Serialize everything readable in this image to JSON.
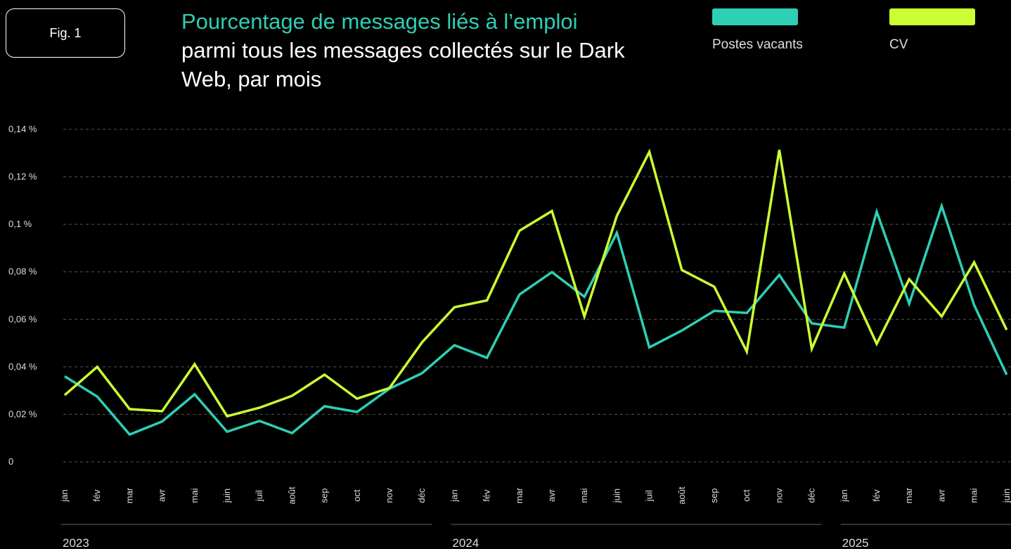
{
  "chart_data": {
    "type": "line",
    "figure_label": "Fig. 1",
    "title": "Pourcentage de messages liés à l’emploi",
    "subtitle": "parmi tous les messages collectés sur le Dark Web, par mois",
    "categories": [
      "jan",
      "fév",
      "mar",
      "avr",
      "mai",
      "juin",
      "juil",
      "août",
      "sep",
      "oct",
      "nov",
      "déc",
      "jan",
      "fév",
      "mar",
      "avr",
      "mai",
      "juin",
      "juil",
      "août",
      "sep",
      "oct",
      "nov",
      "déc",
      "jan",
      "fév",
      "mar",
      "avr",
      "mai",
      "juin"
    ],
    "years": [
      "2023",
      "2024",
      "2025"
    ],
    "series": [
      {
        "name": "Postes vacants",
        "color": "#2dcfb5",
        "values": [
          0.036,
          0.0275,
          0.0115,
          0.017,
          0.0284,
          0.0127,
          0.0172,
          0.0121,
          0.0234,
          0.021,
          0.0308,
          0.0373,
          0.0491,
          0.0438,
          0.0704,
          0.0799,
          0.0695,
          0.0964,
          0.0482,
          0.0553,
          0.0636,
          0.0627,
          0.0787,
          0.0583,
          0.0565,
          0.1053,
          0.0666,
          0.1077,
          0.066,
          0.0367
        ]
      },
      {
        "name": "CV",
        "color": "#ccff33",
        "values": [
          0.0281,
          0.04,
          0.0222,
          0.0213,
          0.0411,
          0.0192,
          0.0228,
          0.0278,
          0.0367,
          0.0266,
          0.0311,
          0.0503,
          0.0651,
          0.068,
          0.0973,
          0.1056,
          0.0612,
          0.1036,
          0.1305,
          0.0808,
          0.0737,
          0.0464,
          0.1314,
          0.0476,
          0.0793,
          0.0497,
          0.0769,
          0.0612,
          0.084,
          0.0556
        ]
      }
    ],
    "ylim": [
      0,
      0.14
    ],
    "yticks": [
      0,
      {
        "value": 0.02,
        "label": "0,02 %"
      },
      {
        "value": 0.04,
        "label": "0,04 %"
      },
      {
        "value": 0.06,
        "label": "0,06 %"
      },
      {
        "value": 0.08,
        "label": "0,08 %"
      },
      {
        "value": 0.1,
        "label": "0,1 %"
      },
      {
        "value": 0.12,
        "label": "0,12 %"
      },
      {
        "value": 0.14,
        "label": "0,14 %"
      }
    ],
    "grid": true
  }
}
